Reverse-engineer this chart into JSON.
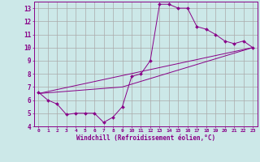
{
  "xlabel": "Windchill (Refroidissement éolien,°C)",
  "bg_color": "#cce8e8",
  "line_color": "#880088",
  "grid_color": "#aaaaaa",
  "xlim": [
    -0.5,
    23.5
  ],
  "ylim": [
    4,
    13.5
  ],
  "xticks": [
    0,
    1,
    2,
    3,
    4,
    5,
    6,
    7,
    8,
    9,
    10,
    11,
    12,
    13,
    14,
    15,
    16,
    17,
    18,
    19,
    20,
    21,
    22,
    23
  ],
  "yticks": [
    4,
    5,
    6,
    7,
    8,
    9,
    10,
    11,
    12,
    13
  ],
  "series1_x": [
    0,
    1,
    2,
    3,
    4,
    5,
    6,
    7,
    8,
    9,
    10,
    11,
    12,
    13,
    14,
    15,
    16,
    17,
    18,
    19,
    20,
    21,
    22,
    23
  ],
  "series1_y": [
    6.6,
    6.0,
    5.7,
    4.9,
    5.0,
    5.0,
    5.0,
    4.3,
    4.7,
    5.5,
    7.8,
    8.0,
    9.0,
    13.3,
    13.3,
    13.0,
    13.0,
    11.6,
    11.4,
    11.0,
    10.5,
    10.3,
    10.5,
    10.0
  ],
  "series2_x": [
    0,
    23
  ],
  "series2_y": [
    6.5,
    10.0
  ],
  "series3_x": [
    0,
    9,
    23
  ],
  "series3_y": [
    6.5,
    7.0,
    10.0
  ]
}
